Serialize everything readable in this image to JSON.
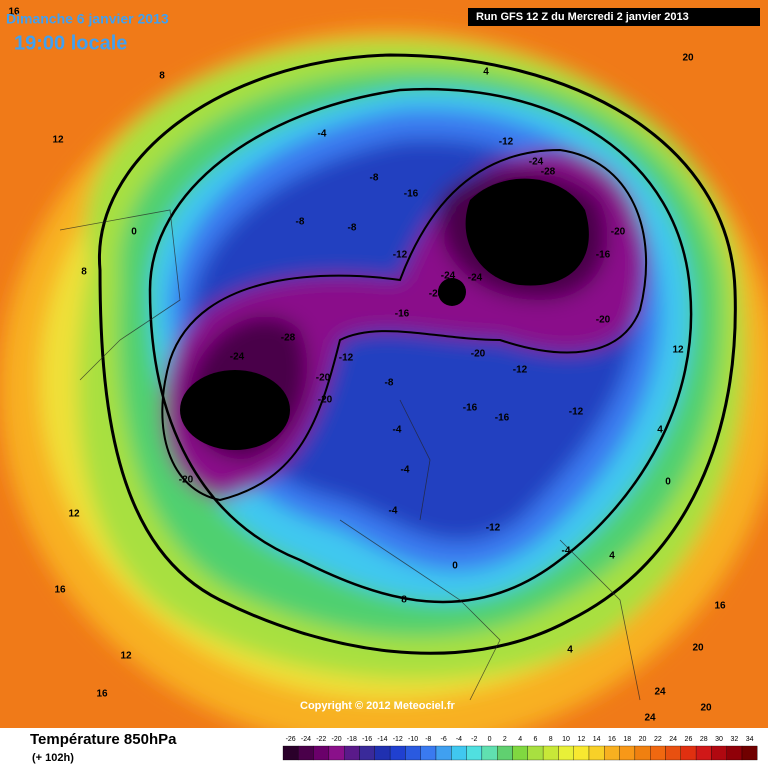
{
  "header": {
    "date": "Dimanche 6 janvier 2013",
    "time": "19:00 locale",
    "run": "Run GFS 12 Z du Mercredi 2 janvier 2013",
    "copyright": "Copyright © 2012 Meteociel.fr"
  },
  "footer": {
    "title": "Température 850hPa",
    "lead": "(+ 102h)"
  },
  "colorbar": {
    "ticks": [
      -26,
      -24,
      -22,
      -20,
      -18,
      -16,
      -14,
      -12,
      -10,
      -8,
      -6,
      -4,
      -2,
      0,
      2,
      4,
      6,
      8,
      10,
      12,
      14,
      16,
      18,
      20,
      22,
      24,
      26,
      28,
      30,
      32,
      34
    ],
    "colors": [
      "#2a002a",
      "#4a004a",
      "#6a006a",
      "#8a108a",
      "#5a1a8a",
      "#3a2a9a",
      "#2030b0",
      "#2040d0",
      "#2a5ae0",
      "#3a7af0",
      "#40a0f0",
      "#40c8f0",
      "#50e0e0",
      "#60e0b0",
      "#60d070",
      "#80d840",
      "#a8e040",
      "#c8e838",
      "#e8f038",
      "#f8e830",
      "#f8d028",
      "#f8b020",
      "#f89818",
      "#f08010",
      "#f06810",
      "#e85010",
      "#e03010",
      "#d01818",
      "#b00810",
      "#900008",
      "#700000"
    ]
  },
  "contour_labels": [
    -28,
    -28,
    -28,
    -28,
    -28,
    -28,
    -24,
    -24,
    -24,
    -24,
    -24,
    -20,
    -20,
    -20,
    -20,
    -20,
    -20,
    -20,
    -16,
    -16,
    -16,
    -16,
    -16,
    -12,
    -12,
    -12,
    -12,
    -12,
    -12,
    -8,
    -8,
    -8,
    -8,
    -4,
    -4,
    -4,
    -4,
    -4,
    0,
    0,
    0,
    4,
    4,
    4,
    4,
    8,
    8,
    8,
    12,
    12,
    12,
    12,
    16,
    16,
    16,
    16,
    20,
    20,
    20,
    24,
    24
  ]
}
